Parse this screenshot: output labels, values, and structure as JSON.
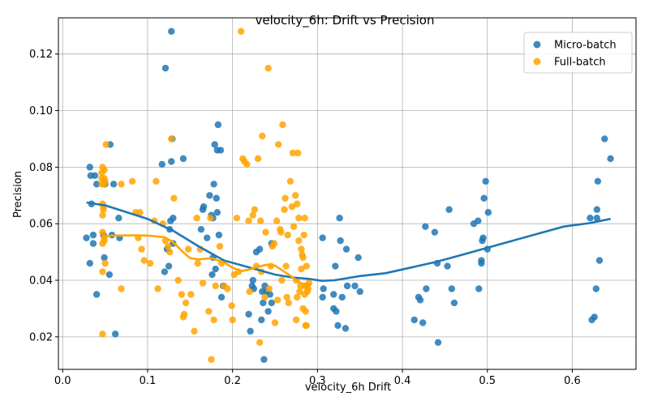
{
  "chart_data": {
    "type": "scatter",
    "title": "velocity_6h: Drift vs Precision",
    "xlabel": "velocity_6h Drift",
    "ylabel": "Precision",
    "xlim": [
      -0.005,
      0.675
    ],
    "ylim": [
      0.0085,
      0.1328
    ],
    "xticks": [
      "0.0",
      "0.1",
      "0.2",
      "0.3",
      "0.4",
      "0.5",
      "0.6"
    ],
    "yticks": [
      "0.02",
      "0.04",
      "0.06",
      "0.08",
      "0.10",
      "0.12"
    ],
    "grid": true,
    "legend_position": "top-right",
    "series": [
      {
        "name": "Micro-batch",
        "color": "#1f77b4",
        "points": [
          [
            0.028,
            0.055
          ],
          [
            0.032,
            0.08
          ],
          [
            0.032,
            0.046
          ],
          [
            0.033,
            0.077
          ],
          [
            0.034,
            0.067
          ],
          [
            0.036,
            0.056
          ],
          [
            0.036,
            0.053
          ],
          [
            0.038,
            0.077
          ],
          [
            0.04,
            0.074
          ],
          [
            0.04,
            0.035
          ],
          [
            0.048,
            0.056
          ],
          [
            0.049,
            0.048
          ],
          [
            0.05,
            0.074
          ],
          [
            0.055,
            0.042
          ],
          [
            0.056,
            0.088
          ],
          [
            0.058,
            0.056
          ],
          [
            0.06,
            0.074
          ],
          [
            0.062,
            0.021
          ],
          [
            0.066,
            0.062
          ],
          [
            0.067,
            0.055
          ],
          [
            0.117,
            0.081
          ],
          [
            0.12,
            0.043
          ],
          [
            0.121,
            0.115
          ],
          [
            0.123,
            0.051
          ],
          [
            0.125,
            0.045
          ],
          [
            0.126,
            0.058
          ],
          [
            0.127,
            0.061
          ],
          [
            0.128,
            0.082
          ],
          [
            0.128,
            0.128
          ],
          [
            0.129,
            0.09
          ],
          [
            0.13,
            0.062
          ],
          [
            0.13,
            0.053
          ],
          [
            0.142,
            0.083
          ],
          [
            0.163,
            0.058
          ],
          [
            0.165,
            0.065
          ],
          [
            0.166,
            0.066
          ],
          [
            0.17,
            0.055
          ],
          [
            0.173,
            0.07
          ],
          [
            0.175,
            0.063
          ],
          [
            0.176,
            0.042
          ],
          [
            0.177,
            0.048
          ],
          [
            0.177,
            0.062
          ],
          [
            0.178,
            0.074
          ],
          [
            0.179,
            0.088
          ],
          [
            0.18,
            0.044
          ],
          [
            0.181,
            0.069
          ],
          [
            0.182,
            0.086
          ],
          [
            0.182,
            0.064
          ],
          [
            0.183,
            0.095
          ],
          [
            0.184,
            0.056
          ],
          [
            0.186,
            0.086
          ],
          [
            0.187,
            0.034
          ],
          [
            0.189,
            0.038
          ],
          [
            0.219,
            0.028
          ],
          [
            0.221,
            0.022
          ],
          [
            0.223,
            0.038
          ],
          [
            0.224,
            0.04
          ],
          [
            0.225,
            0.037
          ],
          [
            0.228,
            0.05
          ],
          [
            0.232,
            0.051
          ],
          [
            0.234,
            0.026
          ],
          [
            0.235,
            0.036
          ],
          [
            0.236,
            0.032
          ],
          [
            0.237,
            0.012
          ],
          [
            0.238,
            0.038
          ],
          [
            0.24,
            0.036
          ],
          [
            0.242,
            0.029
          ],
          [
            0.244,
            0.035
          ],
          [
            0.246,
            0.053
          ],
          [
            0.246,
            0.032
          ],
          [
            0.306,
            0.055
          ],
          [
            0.306,
            0.034
          ],
          [
            0.307,
            0.037
          ],
          [
            0.319,
            0.035
          ],
          [
            0.319,
            0.03
          ],
          [
            0.321,
            0.045
          ],
          [
            0.322,
            0.029
          ],
          [
            0.324,
            0.024
          ],
          [
            0.326,
            0.062
          ],
          [
            0.327,
            0.054
          ],
          [
            0.329,
            0.034
          ],
          [
            0.333,
            0.023
          ],
          [
            0.334,
            0.051
          ],
          [
            0.335,
            0.038
          ],
          [
            0.344,
            0.038
          ],
          [
            0.348,
            0.048
          ],
          [
            0.35,
            0.036
          ],
          [
            0.414,
            0.026
          ],
          [
            0.419,
            0.034
          ],
          [
            0.421,
            0.033
          ],
          [
            0.424,
            0.025
          ],
          [
            0.427,
            0.059
          ],
          [
            0.428,
            0.037
          ],
          [
            0.438,
            0.057
          ],
          [
            0.441,
            0.046
          ],
          [
            0.442,
            0.018
          ],
          [
            0.453,
            0.045
          ],
          [
            0.455,
            0.065
          ],
          [
            0.458,
            0.037
          ],
          [
            0.461,
            0.032
          ],
          [
            0.484,
            0.06
          ],
          [
            0.489,
            0.061
          ],
          [
            0.49,
            0.037
          ],
          [
            0.493,
            0.047
          ],
          [
            0.493,
            0.046
          ],
          [
            0.494,
            0.054
          ],
          [
            0.495,
            0.055
          ],
          [
            0.496,
            0.069
          ],
          [
            0.498,
            0.075
          ],
          [
            0.5,
            0.051
          ],
          [
            0.501,
            0.064
          ],
          [
            0.621,
            0.062
          ],
          [
            0.623,
            0.026
          ],
          [
            0.626,
            0.027
          ],
          [
            0.628,
            0.037
          ],
          [
            0.629,
            0.062
          ],
          [
            0.629,
            0.065
          ],
          [
            0.63,
            0.075
          ],
          [
            0.632,
            0.047
          ],
          [
            0.638,
            0.09
          ],
          [
            0.645,
            0.083
          ]
        ]
      },
      {
        "name": "Full-batch",
        "color": "#ffa500",
        "points": [
          [
            0.046,
            0.074
          ],
          [
            0.046,
            0.076
          ],
          [
            0.046,
            0.078
          ],
          [
            0.047,
            0.08
          ],
          [
            0.047,
            0.067
          ],
          [
            0.047,
            0.063
          ],
          [
            0.047,
            0.057
          ],
          [
            0.047,
            0.053
          ],
          [
            0.047,
            0.043
          ],
          [
            0.047,
            0.021
          ],
          [
            0.048,
            0.065
          ],
          [
            0.048,
            0.066
          ],
          [
            0.049,
            0.055
          ],
          [
            0.049,
            0.054
          ],
          [
            0.049,
            0.079
          ],
          [
            0.049,
            0.074
          ],
          [
            0.049,
            0.076
          ],
          [
            0.05,
            0.075
          ],
          [
            0.05,
            0.046
          ],
          [
            0.051,
            0.088
          ],
          [
            0.069,
            0.037
          ],
          [
            0.069,
            0.074
          ],
          [
            0.082,
            0.075
          ],
          [
            0.086,
            0.064
          ],
          [
            0.089,
            0.055
          ],
          [
            0.091,
            0.064
          ],
          [
            0.093,
            0.051
          ],
          [
            0.096,
            0.047
          ],
          [
            0.103,
            0.046
          ],
          [
            0.108,
            0.061
          ],
          [
            0.11,
            0.075
          ],
          [
            0.112,
            0.037
          ],
          [
            0.118,
            0.06
          ],
          [
            0.121,
            0.054
          ],
          [
            0.124,
            0.052
          ],
          [
            0.126,
            0.05
          ],
          [
            0.128,
            0.09
          ],
          [
            0.131,
            0.069
          ],
          [
            0.136,
            0.04
          ],
          [
            0.14,
            0.035
          ],
          [
            0.142,
            0.027
          ],
          [
            0.143,
            0.028
          ],
          [
            0.145,
            0.032
          ],
          [
            0.148,
            0.051
          ],
          [
            0.151,
            0.035
          ],
          [
            0.155,
            0.022
          ],
          [
            0.158,
            0.062
          ],
          [
            0.159,
            0.046
          ],
          [
            0.162,
            0.051
          ],
          [
            0.165,
            0.039
          ],
          [
            0.172,
            0.029
          ],
          [
            0.174,
            0.062
          ],
          [
            0.175,
            0.012
          ],
          [
            0.178,
            0.026
          ],
          [
            0.18,
            0.038
          ],
          [
            0.185,
            0.052
          ],
          [
            0.187,
            0.046
          ],
          [
            0.19,
            0.038
          ],
          [
            0.194,
            0.037
          ],
          [
            0.199,
            0.031
          ],
          [
            0.2,
            0.026
          ],
          [
            0.202,
            0.042
          ],
          [
            0.205,
            0.062
          ],
          [
            0.207,
            0.043
          ],
          [
            0.21,
            0.128
          ],
          [
            0.212,
            0.083
          ],
          [
            0.214,
            0.082
          ],
          [
            0.217,
            0.081
          ],
          [
            0.219,
            0.061
          ],
          [
            0.22,
            0.036
          ],
          [
            0.224,
            0.063
          ],
          [
            0.226,
            0.065
          ],
          [
            0.228,
            0.045
          ],
          [
            0.23,
            0.083
          ],
          [
            0.232,
            0.018
          ],
          [
            0.233,
            0.061
          ],
          [
            0.234,
            0.043
          ],
          [
            0.235,
            0.091
          ],
          [
            0.238,
            0.034
          ],
          [
            0.239,
            0.057
          ],
          [
            0.242,
            0.115
          ],
          [
            0.243,
            0.037
          ],
          [
            0.245,
            0.045
          ],
          [
            0.247,
            0.052
          ],
          [
            0.249,
            0.053
          ],
          [
            0.25,
            0.025
          ],
          [
            0.252,
            0.061
          ],
          [
            0.253,
            0.033
          ],
          [
            0.254,
            0.088
          ],
          [
            0.256,
            0.058
          ],
          [
            0.257,
            0.057
          ],
          [
            0.258,
            0.04
          ],
          [
            0.259,
            0.095
          ],
          [
            0.261,
            0.065
          ],
          [
            0.262,
            0.069
          ],
          [
            0.263,
            0.045
          ],
          [
            0.264,
            0.034
          ],
          [
            0.265,
            0.056
          ],
          [
            0.266,
            0.032
          ],
          [
            0.268,
            0.075
          ],
          [
            0.27,
            0.066
          ],
          [
            0.271,
            0.085
          ],
          [
            0.272,
            0.059
          ],
          [
            0.274,
            0.07
          ],
          [
            0.275,
            0.026
          ],
          [
            0.275,
            0.04
          ],
          [
            0.276,
            0.067
          ],
          [
            0.276,
            0.034
          ],
          [
            0.277,
            0.085
          ],
          [
            0.278,
            0.054
          ],
          [
            0.278,
            0.062
          ],
          [
            0.279,
            0.036
          ],
          [
            0.28,
            0.038
          ],
          [
            0.281,
            0.044
          ],
          [
            0.281,
            0.051
          ],
          [
            0.282,
            0.049
          ],
          [
            0.283,
            0.048
          ],
          [
            0.283,
            0.03
          ],
          [
            0.284,
            0.056
          ],
          [
            0.285,
            0.062
          ],
          [
            0.285,
            0.038
          ],
          [
            0.285,
            0.035
          ],
          [
            0.286,
            0.024
          ],
          [
            0.286,
            0.029
          ],
          [
            0.287,
            0.045
          ],
          [
            0.287,
            0.024
          ],
          [
            0.288,
            0.038
          ],
          [
            0.288,
            0.036
          ],
          [
            0.289,
            0.037
          ],
          [
            0.29,
            0.039
          ]
        ]
      }
    ],
    "trend_lines": [
      {
        "series": "Micro-batch",
        "color": "#1f77b4",
        "points": [
          [
            0.028,
            0.0675
          ],
          [
            0.05,
            0.0665
          ],
          [
            0.1,
            0.0617
          ],
          [
            0.13,
            0.0575
          ],
          [
            0.16,
            0.052
          ],
          [
            0.19,
            0.047
          ],
          [
            0.22,
            0.0445
          ],
          [
            0.25,
            0.042
          ],
          [
            0.27,
            0.041
          ],
          [
            0.29,
            0.0405
          ],
          [
            0.305,
            0.0398
          ],
          [
            0.32,
            0.04
          ],
          [
            0.35,
            0.0415
          ],
          [
            0.38,
            0.0425
          ],
          [
            0.41,
            0.0445
          ],
          [
            0.44,
            0.0465
          ],
          [
            0.47,
            0.049
          ],
          [
            0.5,
            0.0515
          ],
          [
            0.53,
            0.054
          ],
          [
            0.56,
            0.0565
          ],
          [
            0.59,
            0.059
          ],
          [
            0.62,
            0.0602
          ],
          [
            0.645,
            0.0617
          ]
        ]
      },
      {
        "series": "Full-batch",
        "color": "#ffa500",
        "points": [
          [
            0.046,
            0.0555
          ],
          [
            0.06,
            0.0558
          ],
          [
            0.08,
            0.0559
          ],
          [
            0.1,
            0.0558
          ],
          [
            0.12,
            0.0552
          ],
          [
            0.13,
            0.0535
          ],
          [
            0.14,
            0.0505
          ],
          [
            0.15,
            0.0478
          ],
          [
            0.16,
            0.0474
          ],
          [
            0.175,
            0.0478
          ],
          [
            0.19,
            0.0463
          ],
          [
            0.2,
            0.0445
          ],
          [
            0.21,
            0.0432
          ],
          [
            0.22,
            0.0438
          ],
          [
            0.23,
            0.0448
          ],
          [
            0.24,
            0.0455
          ],
          [
            0.25,
            0.0452
          ],
          [
            0.26,
            0.0432
          ],
          [
            0.27,
            0.0412
          ],
          [
            0.28,
            0.039
          ],
          [
            0.29,
            0.0385
          ]
        ]
      }
    ]
  }
}
